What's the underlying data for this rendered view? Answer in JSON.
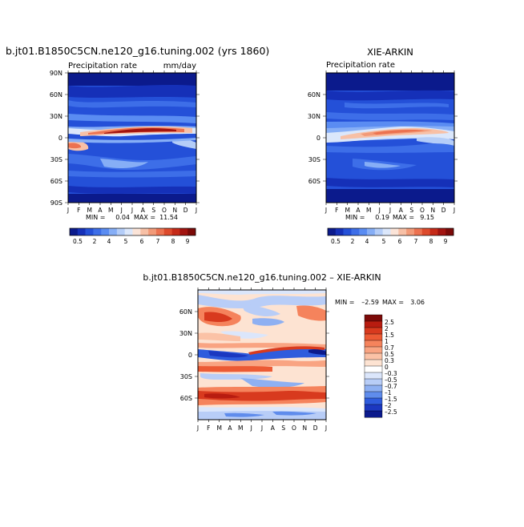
{
  "chart_data": [
    {
      "type": "heatmap",
      "id": "model",
      "title": "b.jt01.B1850C5CN.ne120_g16.tuning.002 (yrs 1860)",
      "subtitle_left": "Precipitation rate",
      "subtitle_right": "mm/day",
      "x": [
        "J",
        "F",
        "M",
        "A",
        "M",
        "J",
        "J",
        "A",
        "S",
        "O",
        "N",
        "D",
        "J"
      ],
      "y": [
        "90N",
        "60N",
        "30N",
        "0",
        "30S",
        "60S",
        "90S"
      ],
      "stats": {
        "min_label": "MIN =",
        "min": "0.04",
        "max_label": "MAX =",
        "max": "11.54"
      },
      "colorbar": [
        "0.5",
        "2",
        "4",
        "5",
        "6",
        "7",
        "8",
        "9"
      ]
    },
    {
      "type": "heatmap",
      "id": "obs",
      "title": "XIE-ARKIN",
      "subtitle_left": "Precipitation rate",
      "x": [
        "J",
        "F",
        "M",
        "A",
        "M",
        "J",
        "J",
        "A",
        "S",
        "O",
        "N",
        "D",
        "J"
      ],
      "y": [
        "60N",
        "30N",
        "0",
        "30S",
        "60S"
      ],
      "stats": {
        "min_label": "MIN =",
        "min": "0.19",
        "max_label": "MAX =",
        "max": "9.15"
      },
      "colorbar": [
        "0.5",
        "2",
        "4",
        "5",
        "6",
        "7",
        "8",
        "9"
      ]
    },
    {
      "type": "heatmap",
      "id": "diff",
      "title": "b.jt01.B1850C5CN.ne120_g16.tuning.002 – XIE-ARKIN",
      "x": [
        "J",
        "F",
        "M",
        "A",
        "M",
        "J",
        "J",
        "A",
        "S",
        "O",
        "N",
        "D",
        "J"
      ],
      "y": [
        "60N",
        "30N",
        "0",
        "30S",
        "60S"
      ],
      "stats": {
        "min_label": "MIN =",
        "min": "–2.59",
        "max_label": "MAX =",
        "max": "3.06"
      },
      "colorbar": [
        "2.5",
        "2",
        "1.5",
        "1",
        "0.7",
        "0.5",
        "0.3",
        "0",
        "–0.3",
        "–0.5",
        "–0.7",
        "–1",
        "–1.5",
        "–2",
        "–2.5"
      ]
    }
  ],
  "colors": {
    "precip_scale": [
      "#0b1a8c",
      "#1530b8",
      "#2450d8",
      "#3d6ee8",
      "#5a8cf2",
      "#86aef6",
      "#b4cdf8",
      "#dbe7fb",
      "#fbe4d8",
      "#f7c0a6",
      "#f29a78",
      "#ec7250",
      "#dd4a2c",
      "#c52a18",
      "#a21410",
      "#7c0a08"
    ],
    "diff_scale": [
      "#7c0a08",
      "#b81c10",
      "#d83a1e",
      "#ec5a34",
      "#f5835c",
      "#f9a482",
      "#fbc2a6",
      "#fde3d2",
      "#ffffff",
      "#dbe6fb",
      "#b8cdf7",
      "#8eb0f2",
      "#5f8cec",
      "#2f5cdd",
      "#1c38c0",
      "#0b1a8c"
    ]
  }
}
